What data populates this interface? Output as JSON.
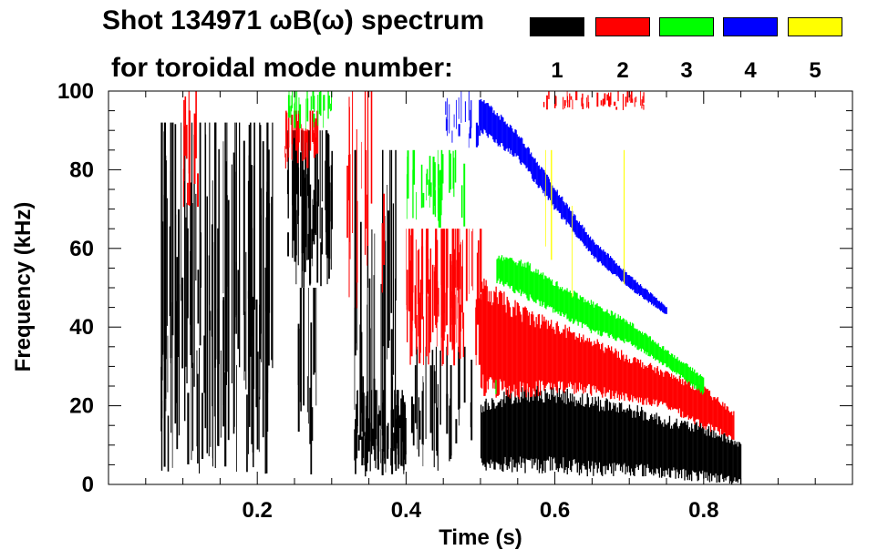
{
  "header": {
    "line1": "Shot 134971 ωB(ω) spectrum",
    "line2": "for toroidal mode number:"
  },
  "legend": [
    {
      "label": "1",
      "color": "#000000"
    },
    {
      "label": "2",
      "color": "#ff0000"
    },
    {
      "label": "3",
      "color": "#00ff00"
    },
    {
      "label": "4",
      "color": "#0000ff"
    },
    {
      "label": "5",
      "color": "#ffff00"
    }
  ],
  "chart_data": {
    "type": "scatter",
    "title": "Shot 134971 ωB(ω) spectrum",
    "subtitle": "for toroidal mode number:",
    "xlabel": "Time (s)",
    "ylabel": "Frequency (kHz)",
    "xlim": [
      0.0,
      1.0
    ],
    "ylim": [
      0,
      100
    ],
    "x_ticks": [
      0.2,
      0.4,
      0.6,
      0.8
    ],
    "x_tick_labels": [
      "0.2",
      "0.4",
      "0.6",
      "0.8"
    ],
    "y_ticks": [
      0,
      20,
      40,
      60,
      80,
      100
    ],
    "y_tick_labels": [
      "0",
      "20",
      "40",
      "60",
      "80",
      "100"
    ],
    "grid": false,
    "series": [
      {
        "name": "1",
        "color": "#000000",
        "bands": [
          {
            "t0": 0.07,
            "t1": 0.22,
            "f0": 2,
            "f1": 92,
            "density": 0.7
          },
          {
            "t0": 0.24,
            "t1": 0.3,
            "f0": 50,
            "f1": 90,
            "density": 0.8
          },
          {
            "t0": 0.25,
            "t1": 0.28,
            "f0": 2,
            "f1": 50,
            "density": 0.35
          },
          {
            "t0": 0.33,
            "t1": 0.39,
            "f0": 2,
            "f1": 85,
            "density": 0.45
          },
          {
            "t0": 0.33,
            "t1": 0.4,
            "f0": 2,
            "f1": 24,
            "density": 0.9
          },
          {
            "t0": 0.4,
            "t1": 0.5,
            "f0": 2,
            "f1": 35,
            "density": 0.25
          }
        ],
        "ridge": {
          "t": [
            0.5,
            0.55,
            0.6,
            0.65,
            0.7,
            0.75,
            0.8,
            0.85
          ],
          "f_low": [
            5,
            5,
            5,
            4,
            4,
            3,
            2,
            1
          ],
          "f_high": [
            20,
            23,
            23,
            21,
            19,
            16,
            14,
            10
          ]
        }
      },
      {
        "name": "2",
        "color": "#ff0000",
        "bands": [
          {
            "t0": 0.1,
            "t1": 0.12,
            "f0": 70,
            "f1": 100,
            "density": 0.4
          },
          {
            "t0": 0.23,
            "t1": 0.28,
            "f0": 80,
            "f1": 95,
            "density": 0.5
          },
          {
            "t0": 0.32,
            "t1": 0.37,
            "f0": 40,
            "f1": 100,
            "density": 0.25
          },
          {
            "t0": 0.4,
            "t1": 0.5,
            "f0": 30,
            "f1": 65,
            "density": 0.85
          },
          {
            "t0": 0.58,
            "t1": 0.72,
            "f0": 95,
            "f1": 100,
            "density": 0.25
          }
        ],
        "ridge": {
          "t": [
            0.5,
            0.55,
            0.6,
            0.65,
            0.7,
            0.75,
            0.8,
            0.84
          ],
          "f_low": [
            25,
            24,
            25,
            24,
            22,
            20,
            15,
            12
          ],
          "f_high": [
            50,
            44,
            40,
            36,
            32,
            28,
            24,
            18
          ]
        }
      },
      {
        "name": "3",
        "color": "#00ff00",
        "bands": [
          {
            "t0": 0.24,
            "t1": 0.3,
            "f0": 90,
            "f1": 100,
            "density": 0.4
          },
          {
            "t0": 0.4,
            "t1": 0.48,
            "f0": 65,
            "f1": 85,
            "density": 0.35
          }
        ],
        "ridge": {
          "t": [
            0.52,
            0.56,
            0.6,
            0.65,
            0.7,
            0.75,
            0.8
          ],
          "f_low": [
            52,
            48,
            44,
            39,
            36,
            30,
            23
          ],
          "f_high": [
            58,
            56,
            51,
            46,
            41,
            34,
            27
          ]
        }
      },
      {
        "name": "4",
        "color": "#0000ff",
        "bands": [
          {
            "t0": 0.45,
            "t1": 0.5,
            "f0": 85,
            "f1": 100,
            "density": 0.3
          }
        ],
        "ridge": {
          "t": [
            0.5,
            0.55,
            0.6,
            0.65,
            0.7,
            0.75
          ],
          "f_low": [
            90,
            83,
            70,
            58,
            50,
            43
          ],
          "f_high": [
            98,
            89,
            75,
            62,
            53,
            45
          ]
        }
      },
      {
        "name": "5",
        "color": "#ffff00",
        "bands": [
          {
            "t0": 0.58,
            "t1": 0.75,
            "f0": 40,
            "f1": 85,
            "density": 0.02
          }
        ],
        "ridge": null
      }
    ]
  }
}
